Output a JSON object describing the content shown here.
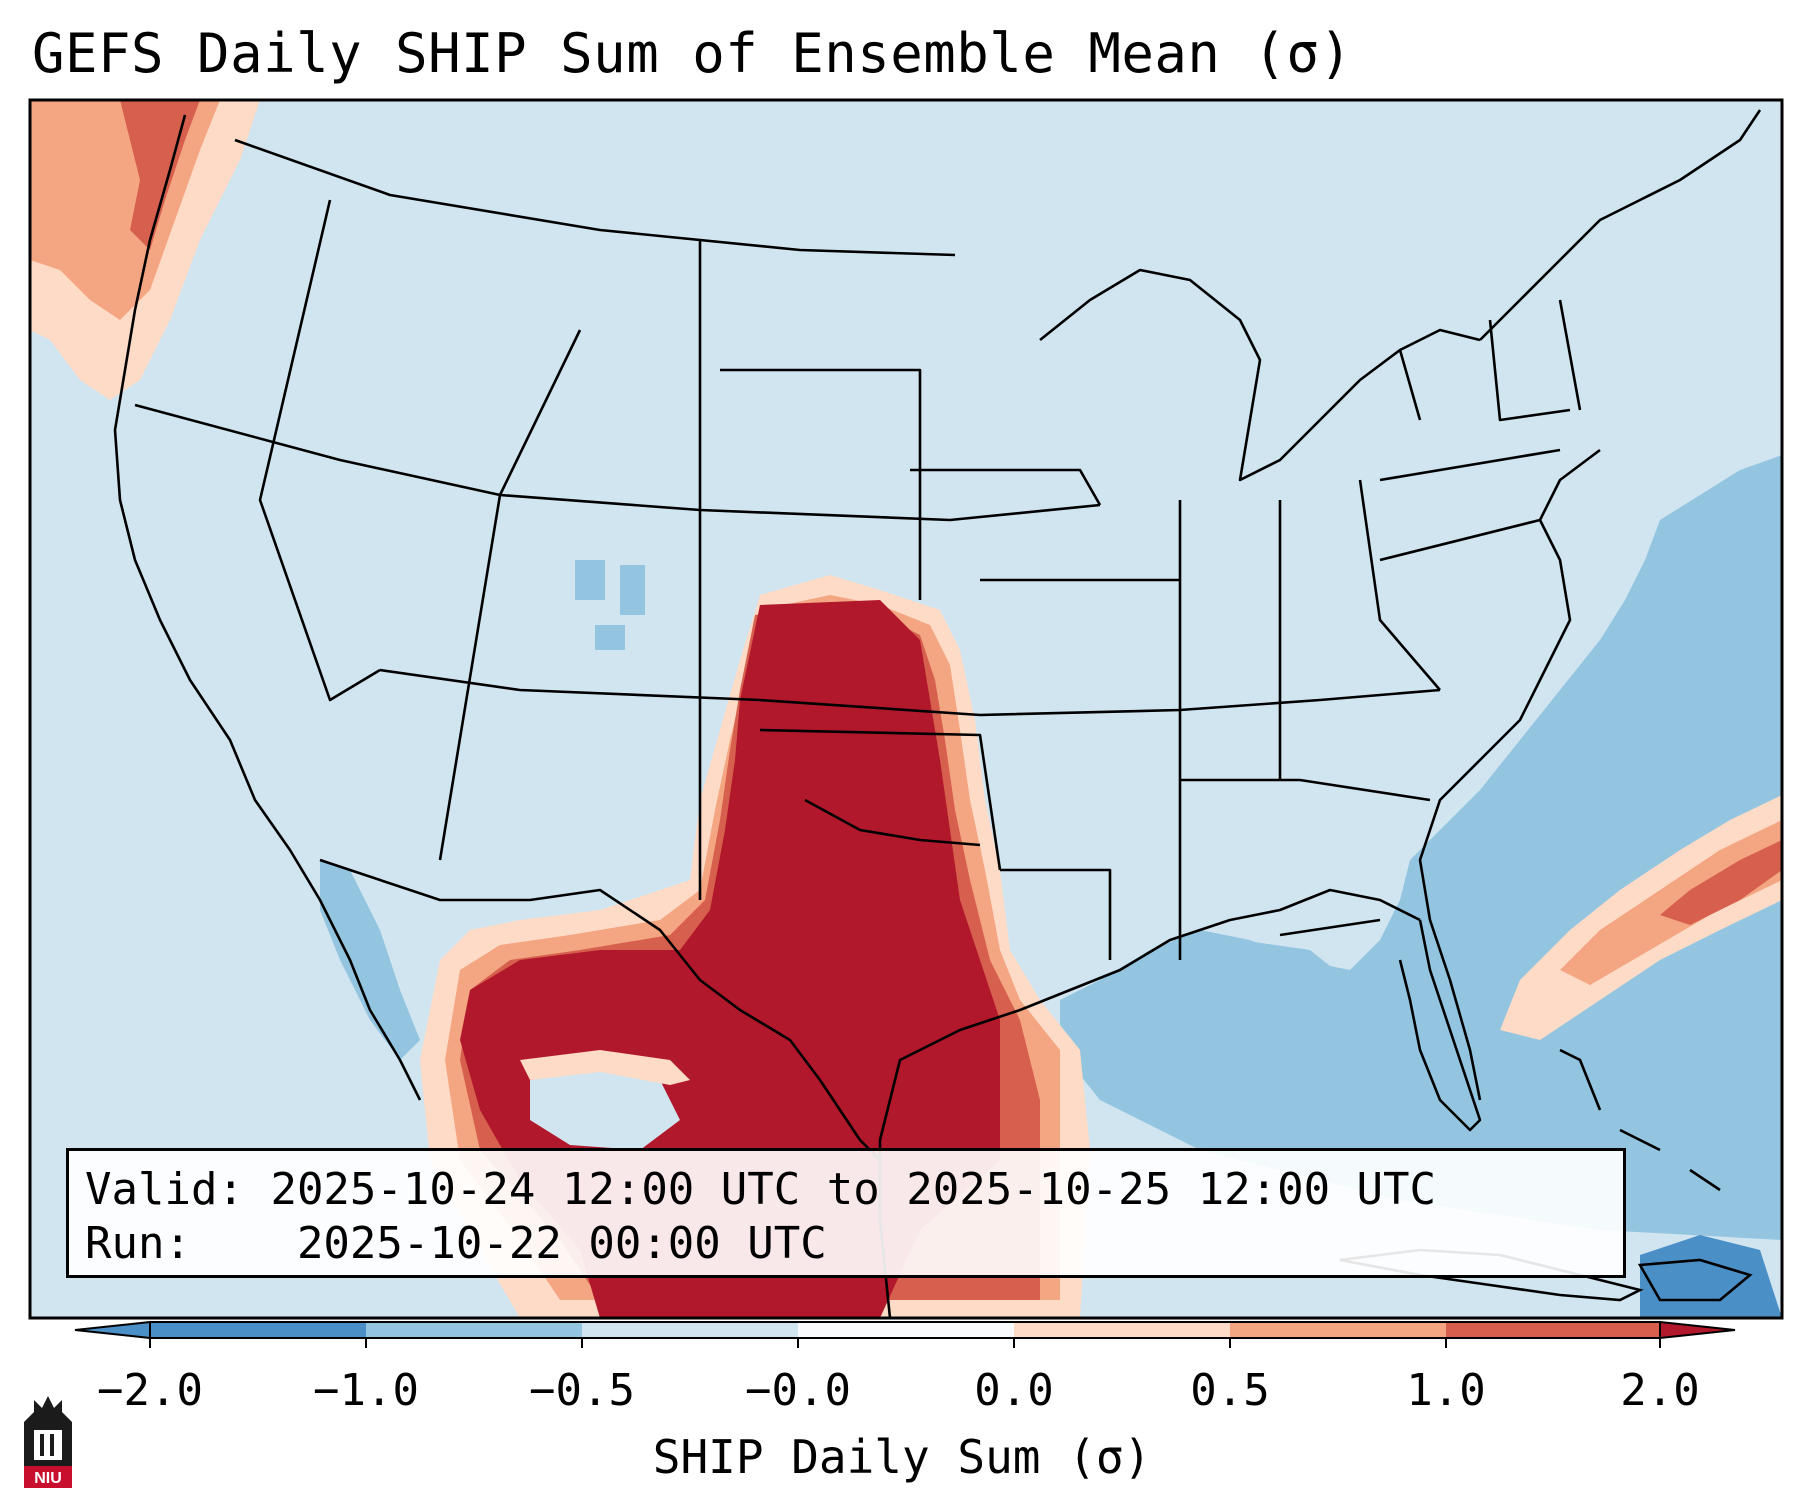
{
  "title": "GEFS Daily SHIP Sum of Ensemble Mean (σ)",
  "info": {
    "valid_label": "Valid:",
    "valid_value": "2025-10-24 12:00 UTC to 2025-10-25 12:00 UTC",
    "run_label": "Run:",
    "run_value": "2025-10-22 00:00 UTC"
  },
  "colorbar": {
    "title": "SHIP Daily Sum (σ)",
    "ticks": [
      "−2.0",
      "−1.0",
      "−0.5",
      "−0.0",
      "0.0",
      "0.5",
      "1.0",
      "2.0"
    ],
    "colors": [
      "#4b8fc7",
      "#94c5e0",
      "#d1e5f0",
      "#f8fafc",
      "#fddbc7",
      "#f4a582",
      "#d6604d",
      "#b2182b"
    ]
  },
  "logo": {
    "text": "NIU"
  },
  "colors": {
    "land_background": "#d1e5f0",
    "strong_positive": "#b2182b",
    "positive": "#d6604d",
    "mild_positive": "#f4a582",
    "light_positive": "#fddbc7",
    "negative": "#94c5e0",
    "strong_negative": "#4b8fc7"
  }
}
